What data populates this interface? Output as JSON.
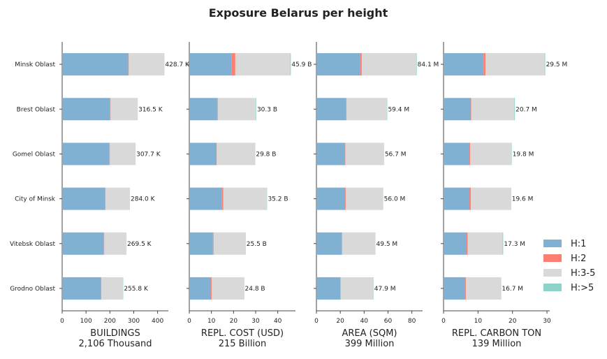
{
  "title": "Exposure Belarus per height",
  "legend": {
    "position": "right"
  },
  "chart_data": [
    {
      "type": "barh",
      "xlabel_lines": [
        "BUILDINGS",
        "2,106 Thousand"
      ],
      "categories": [
        "Minsk Oblast",
        "Brest Oblast",
        "Gomel Oblast",
        "City of Minsk",
        "Vitebsk Oblast",
        "Grodno Oblast"
      ],
      "series": [
        {
          "name": "H:1",
          "color": "#80b1d3",
          "values": [
            275,
            201.5,
            198.5,
            181,
            175,
            163.5
          ]
        },
        {
          "name": "H:2",
          "color": "#fb8072",
          "values": [
            4,
            1.5,
            1.5,
            0.5,
            1.5,
            0.5
          ]
        },
        {
          "name": "H:3-5",
          "color": "#d9d9d9",
          "values": [
            149.2,
            113.2,
            107.5,
            102.3,
            92.5,
            90.3
          ]
        },
        {
          "name": "H:>5",
          "color": "#8dd3c7",
          "values": [
            0.5,
            0.3,
            0.2,
            0.2,
            0.5,
            1.5
          ]
        }
      ],
      "totals": {
        "values": [
          428.7,
          316.5,
          307.7,
          284.0,
          269.5,
          255.8
        ],
        "value_labels": [
          "428.7 K",
          "316.5 K",
          "307.7 K",
          "284.0 K",
          "269.5 K",
          "255.8 K"
        ]
      },
      "xlim": [
        0,
        445
      ],
      "xticks": [
        0,
        100,
        200,
        300,
        400
      ]
    },
    {
      "type": "barh",
      "xlabel_lines": [
        "REPL. COST (USD)",
        "215 Billion"
      ],
      "series": [
        {
          "values": [
            19.2,
            12.6,
            12.0,
            14.8,
            10.7,
            9.8
          ]
        },
        {
          "values": [
            1.6,
            0.3,
            0.4,
            0.6,
            0.3,
            0.3
          ]
        },
        {
          "values": [
            24.8,
            17.2,
            17.3,
            19.7,
            14.4,
            14.5
          ]
        },
        {
          "values": [
            0.3,
            0.2,
            0.1,
            0.1,
            0.1,
            0.2
          ]
        }
      ],
      "totals": {
        "values": [
          45.9,
          30.3,
          29.8,
          35.2,
          25.5,
          24.8
        ],
        "value_labels": [
          "45.9 B",
          "30.3 B",
          "29.8 B",
          "35.2 B",
          "25.5 B",
          "24.8 B"
        ]
      },
      "xlim": [
        0,
        48
      ],
      "xticks": [
        0,
        10,
        20,
        30,
        40
      ]
    },
    {
      "type": "barh",
      "xlabel_lines": [
        "AREA (SQM)",
        "399 Million"
      ],
      "series": [
        {
          "values": [
            36.5,
            24.7,
            24.1,
            24.1,
            21.2,
            20.0
          ]
        },
        {
          "values": [
            1.5,
            0.5,
            0.3,
            0.6,
            0.4,
            0.4
          ]
        },
        {
          "values": [
            45.6,
            33.9,
            32.2,
            31.2,
            27.8,
            27.3
          ]
        },
        {
          "values": [
            0.5,
            0.3,
            0.1,
            0.1,
            0.1,
            0.2
          ]
        }
      ],
      "totals": {
        "values": [
          84.1,
          59.4,
          56.7,
          56.0,
          49.5,
          47.9
        ],
        "value_labels": [
          "84.1 M",
          "59.4 M",
          "56.7 M",
          "56.0 M",
          "49.5 M",
          "47.9 M"
        ]
      },
      "xlim": [
        0,
        89
      ],
      "xticks": [
        0,
        20,
        40,
        60,
        80
      ]
    },
    {
      "type": "barh",
      "xlabel_lines": [
        "REPL. CARBON TON",
        "139 Million"
      ],
      "series": [
        {
          "values": [
            11.6,
            7.7,
            7.5,
            7.5,
            6.7,
            6.3
          ]
        },
        {
          "values": [
            0.6,
            0.3,
            0.2,
            0.4,
            0.3,
            0.2
          ]
        },
        {
          "values": [
            17.1,
            12.5,
            12.0,
            11.6,
            10.1,
            10.1
          ]
        },
        {
          "values": [
            0.2,
            0.2,
            0.1,
            0.1,
            0.2,
            0.1
          ]
        }
      ],
      "totals": {
        "values": [
          29.5,
          20.7,
          19.8,
          19.6,
          17.3,
          16.7
        ],
        "value_labels": [
          "29.5 M",
          "20.7 M",
          "19.8 M",
          "19.6 M",
          "17.3 M",
          "16.7 M"
        ]
      },
      "xlim": [
        0,
        30.8
      ],
      "xticks": [
        0,
        10,
        20,
        30
      ]
    }
  ]
}
